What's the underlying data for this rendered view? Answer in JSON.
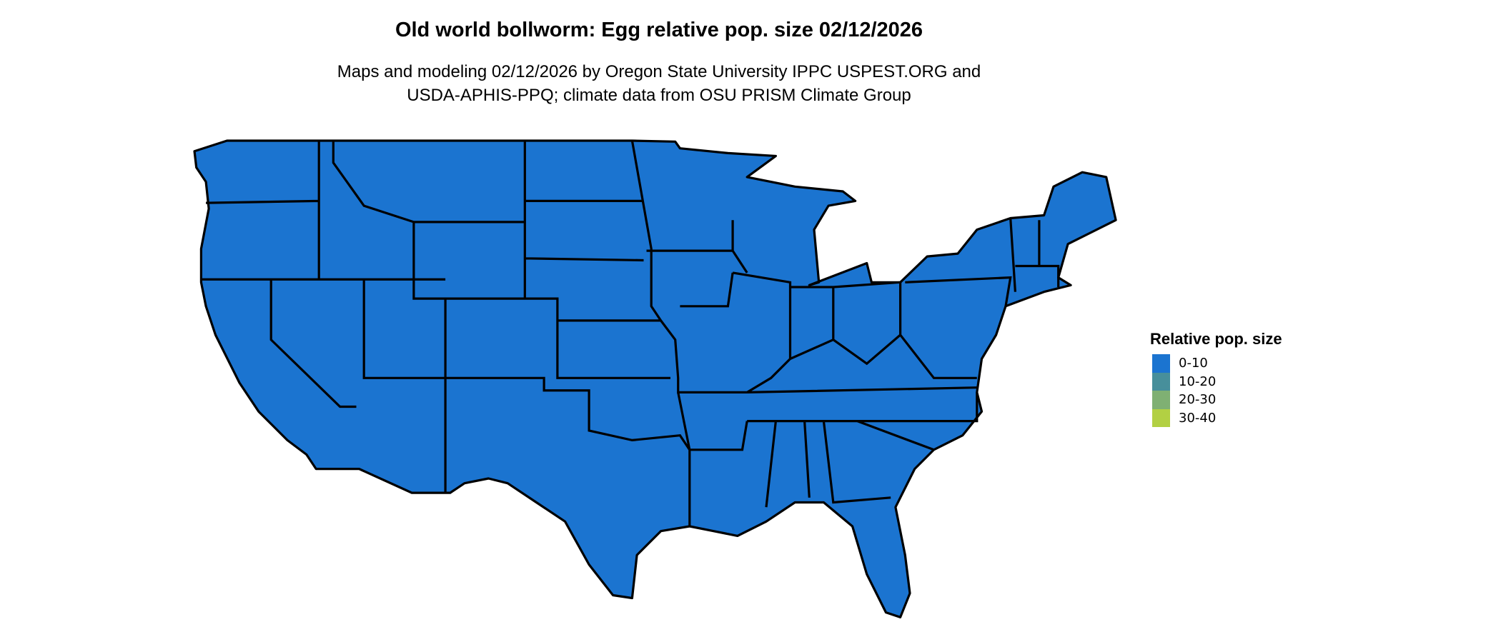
{
  "title": "Old world bollworm: Egg relative pop. size 02/12/2026",
  "subtitle_line1": "Maps and modeling 02/12/2026 by Oregon State University IPPC USPEST.ORG and",
  "subtitle_line2": "USDA-APHIS-PPQ; climate data from OSU PRISM Climate Group",
  "map": {
    "region": "Contiguous United States",
    "dominant_class": "0-10",
    "fill_color": "#1b74d0",
    "border_color": "#000000"
  },
  "legend": {
    "title": "Relative pop. size",
    "items": [
      {
        "label": "0-10",
        "color": "#1b74d0"
      },
      {
        "label": "10-20",
        "color": "#478f9b"
      },
      {
        "label": "20-30",
        "color": "#7fb073"
      },
      {
        "label": "30-40",
        "color": "#b2d043"
      }
    ]
  }
}
